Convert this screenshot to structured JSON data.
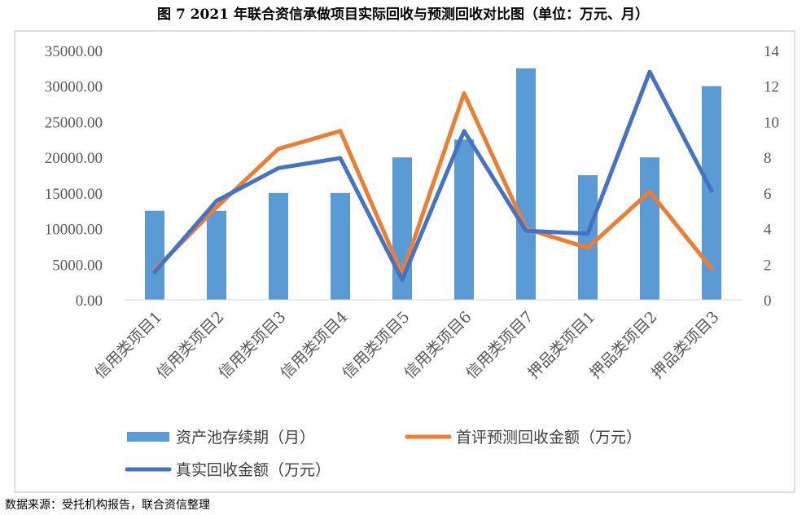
{
  "title": "图 7   2021 年联合资信承做项目实际回收与预测回收对比图（单位：万元、月）",
  "source": "数据来源：受托机构报告，联合资信整理",
  "chart_data": {
    "type": "bar",
    "categories": [
      "信用类项目1",
      "信用类项目2",
      "信用类项目3",
      "信用类项目4",
      "信用类项目5",
      "信用类项目6",
      "信用类项目7",
      "押品类项目1",
      "押品类项目2",
      "押品类项目3"
    ],
    "y_left": {
      "min": 0,
      "max": 35000,
      "step": 5000,
      "ticks": [
        "0.00",
        "5000.00",
        "10000.00",
        "15000.00",
        "20000.00",
        "25000.00",
        "30000.00",
        "35000.00"
      ]
    },
    "y_right": {
      "min": 0,
      "max": 14,
      "step": 2,
      "ticks": [
        "0",
        "2",
        "4",
        "6",
        "8",
        "10",
        "12",
        "14"
      ]
    },
    "series": [
      {
        "name": "资产池存续期（月）",
        "type": "bar",
        "axis": "right",
        "color": "#5B9BD5",
        "values": [
          5,
          5,
          6,
          6,
          8,
          9,
          13,
          7,
          8,
          12
        ]
      },
      {
        "name": "首评预测回收金额（万元）",
        "type": "line",
        "axis": "left",
        "color": "#ED7D31",
        "values": [
          4200,
          13000,
          21200,
          23700,
          3600,
          29000,
          10000,
          7300,
          15200,
          4400
        ]
      },
      {
        "name": "真实回收金额（万元）",
        "type": "line",
        "axis": "left",
        "color": "#4472C4",
        "values": [
          3900,
          13900,
          18500,
          19900,
          2800,
          23700,
          9700,
          9300,
          32000,
          15300
        ]
      }
    ],
    "grid": false,
    "legend_position": "bottom"
  }
}
